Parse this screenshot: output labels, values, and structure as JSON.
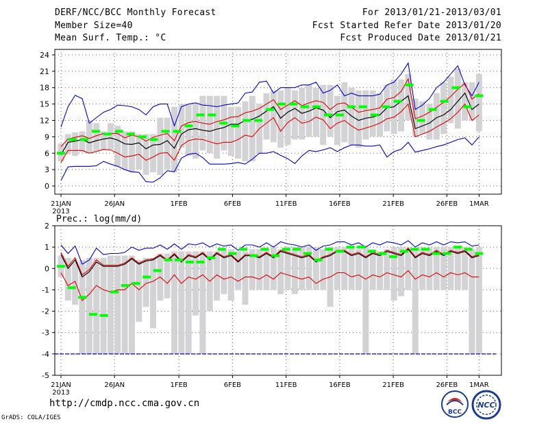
{
  "header": {
    "title": "DERF/NCC/BCC Monthly Forecast",
    "member_size": "Member Size=40",
    "variable": "Mean Surf. Temp.: °C",
    "period": "For 2013/01/21-2013/03/01",
    "refer_date": "Fcst Started Refer Date 2013/01/20",
    "produced_date": "Fcst Produced Date 2013/01/21"
  },
  "footer": {
    "url": "http://cmdp.ncc.cma.gov.cn",
    "grads": "GrADS: COLA/IGES",
    "logo1_text": "BCC",
    "logo2_text": "NCC"
  },
  "colors": {
    "box": "#d3d3d6",
    "member": "#00ff00",
    "mean": "#000000",
    "inner": "#dd0000",
    "outer": "#0000cc",
    "grid": "#555555"
  },
  "chart_data": [
    {
      "type": "box-line",
      "title": "Mean Surf. Temp.: °C",
      "xlabel": "",
      "ylabel": "",
      "x_tick_labels": [
        "21JAN",
        "26JAN",
        "1FEB",
        "6FEB",
        "11FEB",
        "16FEB",
        "21FEB",
        "26FEB",
        "1MAR"
      ],
      "x_tick_days": [
        0,
        5,
        11,
        16,
        21,
        26,
        31,
        36,
        39
      ],
      "x_sublabel": "2013",
      "ylim": [
        -1.5,
        25
      ],
      "yticks": [
        0,
        3,
        6,
        9,
        12,
        15,
        18,
        21,
        24
      ],
      "grid": true,
      "series": [
        {
          "name": "box_low",
          "values": [
            4.5,
            5.8,
            5.5,
            6.2,
            6.0,
            6.3,
            6.5,
            6.7,
            3.5,
            3.0,
            2.5,
            3.0,
            2.0,
            2.5,
            2.0,
            3.0,
            2.5,
            7.0,
            5.5,
            5.0,
            6.5,
            6.0,
            5.0,
            6.5,
            5.5,
            5.0,
            4.5,
            4.5,
            6.0,
            8.5,
            8.0,
            7.0,
            7.5,
            8.5,
            8.5,
            9.0,
            9.0,
            7.5,
            9.0,
            7.5,
            8.0,
            7.5,
            7.0,
            8.5,
            9.0,
            9.0,
            10.0,
            9.5,
            10.0,
            12.0,
            9.0,
            9.5,
            8.5,
            8.5,
            9.5,
            11.5,
            10.5,
            12.0,
            12.0,
            10.0
          ]
        },
        {
          "name": "box_high",
          "values": [
            7.8,
            9.5,
            9.8,
            10.0,
            12.0,
            11.5,
            10.0,
            11.5,
            11.0,
            10.0,
            10.0,
            9.5,
            9.5,
            9.5,
            12.5,
            12.5,
            14.5,
            15.0,
            15.0,
            15.0,
            16.5,
            16.5,
            16.5,
            16.5,
            14.5,
            14.5,
            15.5,
            16.5,
            15.0,
            17.0,
            17.5,
            17.5,
            18.0,
            17.5,
            18.0,
            18.5,
            18.0,
            18.5,
            18.5,
            16.5,
            19.0,
            18.0,
            17.5,
            17.5,
            17.5,
            17.0,
            18.5,
            19.5,
            19.5,
            20.5,
            16.0,
            15.5,
            15.0,
            17.0,
            19.0,
            20.0,
            21.5,
            19.0,
            19.0,
            20.5
          ]
        },
        {
          "name": "member",
          "values": [
            6.0,
            8.5,
            8.5,
            10.0,
            9.5,
            10.0,
            9.5,
            9.0,
            8.5,
            10.0,
            10.0,
            11.0,
            13.0,
            13.0,
            11.5,
            11.0,
            12.0,
            12.0,
            14.0,
            15.0,
            15.0,
            14.5,
            14.5,
            13.0,
            13.0,
            14.5,
            14.5,
            13.0,
            14.5,
            15.5,
            18.5,
            12.0,
            14.0,
            15.5,
            18.0,
            14.5,
            16.5
          ]
        },
        {
          "name": "mean",
          "values": [
            5.7,
            8.0,
            8.2,
            8.5,
            7.9,
            8.3,
            8.6,
            8.8,
            8.4,
            7.7,
            7.6,
            7.9,
            6.8,
            7.5,
            7.6,
            8.3,
            6.9,
            9.5,
            10.3,
            10.5,
            10.2,
            10.0,
            10.4,
            10.7,
            11.3,
            11.3,
            12.0,
            12.2,
            12.8,
            13.7,
            14.5,
            12.4,
            13.5,
            14.2,
            13.3,
            13.7,
            14.3,
            13.9,
            12.5,
            13.6,
            13.9,
            12.8,
            12.0,
            12.4,
            12.6,
            13.0,
            14.3,
            14.5,
            15.5,
            16.5,
            10.5,
            11.0,
            11.5,
            12.5,
            13.0,
            14.0,
            15.5,
            17.0,
            14.0,
            15.0
          ]
        },
        {
          "name": "inner_high",
          "values": [
            7.2,
            8.6,
            8.9,
            9.2,
            8.7,
            9.2,
            9.6,
            9.6,
            9.6,
            8.8,
            9.3,
            9.0,
            8.2,
            8.9,
            9.3,
            9.6,
            8.3,
            11.0,
            11.6,
            11.8,
            11.5,
            11.3,
            11.8,
            12.1,
            12.6,
            12.7,
            13.4,
            13.7,
            14.2,
            15.0,
            15.8,
            14.0,
            14.8,
            15.6,
            14.7,
            15.2,
            15.6,
            15.3,
            14.0,
            15.0,
            15.2,
            14.4,
            13.5,
            13.8,
            14.0,
            14.3,
            15.9,
            16.2,
            17.3,
            19.6,
            12.3,
            12.8,
            13.5,
            14.4,
            15.3,
            16.4,
            17.7,
            18.8,
            15.9,
            16.9
          ]
        },
        {
          "name": "inner_low",
          "values": [
            4.3,
            6.5,
            6.5,
            6.5,
            6.0,
            6.3,
            6.7,
            6.6,
            6.0,
            5.3,
            5.5,
            5.8,
            4.7,
            5.3,
            6.0,
            6.1,
            4.7,
            7.4,
            8.3,
            8.6,
            8.5,
            8.1,
            7.7,
            8.0,
            8.0,
            8.5,
            9.3,
            9.0,
            10.5,
            11.5,
            12.5,
            10.0,
            11.6,
            12.5,
            11.5,
            11.8,
            12.6,
            12.1,
            10.5,
            11.5,
            12.0,
            11.0,
            10.2,
            10.6,
            11.0,
            11.5,
            12.3,
            12.6,
            13.6,
            15.0,
            9.0,
            9.5,
            10.0,
            10.8,
            11.5,
            12.3,
            13.5,
            15.0,
            12.0,
            13.0
          ]
        },
        {
          "name": "outer_high",
          "values": [
            10.8,
            14.5,
            16.6,
            16.0,
            11.5,
            12.5,
            13.5,
            14.0,
            14.8,
            14.7,
            14.5,
            14.0,
            13.0,
            14.5,
            15.0,
            15.0,
            11.0,
            14.5,
            15.0,
            15.2,
            14.8,
            14.7,
            14.5,
            14.8,
            15.0,
            15.2,
            17.0,
            17.2,
            19.0,
            19.2,
            17.0,
            18.0,
            18.0,
            18.0,
            18.5,
            18.5,
            19.0,
            17.0,
            17.5,
            18.5,
            16.5,
            17.0,
            16.5,
            16.5,
            16.5,
            16.8,
            18.5,
            19.0,
            20.5,
            22.5,
            14.0,
            14.8,
            16.0,
            18.0,
            19.0,
            20.5,
            22.0,
            18.5,
            16.5,
            19.0
          ]
        },
        {
          "name": "outer_low",
          "values": [
            1.0,
            3.5,
            3.6,
            3.6,
            3.6,
            3.7,
            4.5,
            4.0,
            3.6,
            3.0,
            2.6,
            2.5,
            0.8,
            0.7,
            1.5,
            2.8,
            2.6,
            5.1,
            5.8,
            6.0,
            5.2,
            4.0,
            4.0,
            4.0,
            4.1,
            4.3,
            4.0,
            4.9,
            6.0,
            6.0,
            6.3,
            5.6,
            5.0,
            4.1,
            5.5,
            6.5,
            6.3,
            6.6,
            7.0,
            6.3,
            7.0,
            7.5,
            7.5,
            7.3,
            7.3,
            7.5,
            5.3,
            6.3,
            6.7,
            8.0,
            6.2,
            6.5,
            6.8,
            7.2,
            7.5,
            8.0,
            8.5,
            8.8,
            7.5,
            9.0
          ]
        }
      ]
    },
    {
      "type": "box-line",
      "title": "Prec.: log(mm/d)",
      "xlabel": "",
      "ylabel": "",
      "x_tick_labels": [
        "21JAN",
        "26JAN",
        "1FEB",
        "6FEB",
        "11FEB",
        "16FEB",
        "21FEB",
        "26FEB",
        "1MAR"
      ],
      "x_tick_days": [
        0,
        5,
        11,
        16,
        21,
        26,
        31,
        36,
        39
      ],
      "x_sublabel": "2013",
      "ylim": [
        -5,
        2
      ],
      "yticks": [
        -5,
        -4,
        -3,
        -2,
        -1,
        0,
        1,
        2
      ],
      "reference_line": -4,
      "grid": true,
      "series": [
        {
          "name": "box_low",
          "values": [
            -0.4,
            -1.5,
            -1.7,
            -4.0,
            -4.0,
            -4.0,
            -4.0,
            -4.0,
            -4.0,
            -4.0,
            -4.0,
            -2.5,
            -1.8,
            -2.8,
            -1.5,
            -1.4,
            -4.0,
            -4.0,
            -4.0,
            -2.2,
            -4.0,
            -2.0,
            -1.5,
            -1.2,
            -1.5,
            -1.0,
            -1.7,
            -1.0,
            -1.0,
            -1.0,
            -1.0,
            -1.2,
            -1.0,
            -1.2,
            -1.0,
            -1.0,
            -1.0,
            -1.0,
            -1.8,
            -1.0,
            -1.0,
            -1.0,
            -1.0,
            -4.0,
            -1.0,
            -1.0,
            -1.0,
            -1.5,
            -1.3,
            -1.0,
            -4.0,
            -1.0,
            -1.0,
            -1.0,
            -1.0,
            -1.0,
            -1.0,
            -1.0,
            -4.0,
            -4.0
          ]
        },
        {
          "name": "box_high",
          "values": [
            0.6,
            0.5,
            0.3,
            0.4,
            0.5,
            0.5,
            0.5,
            0.6,
            0.6,
            0.6,
            0.6,
            0.4,
            0.5,
            0.5,
            0.7,
            0.7,
            0.8,
            0.8,
            0.8,
            0.8,
            0.8,
            0.8,
            0.8,
            0.9,
            0.9,
            0.8,
            0.8,
            0.9,
            0.9,
            0.9,
            1.0,
            0.9,
            1.0,
            1.0,
            1.0,
            1.0,
            1.0,
            0.9,
            1.0,
            1.0,
            1.0,
            1.0,
            0.9,
            1.0,
            0.9,
            0.8,
            0.9,
            1.0,
            1.0,
            1.0,
            0.9,
            1.0,
            1.0,
            1.0,
            1.0,
            1.0,
            1.0,
            1.0,
            0.9,
            1.0
          ]
        },
        {
          "name": "member",
          "values": [
            0.1,
            -0.9,
            -1.35,
            -2.15,
            -2.2,
            -1.1,
            -0.8,
            -0.7,
            -0.4,
            -0.1,
            0.4,
            0.4,
            0.3,
            0.3,
            0.5,
            0.9,
            0.7,
            0.9,
            0.6,
            0.9,
            0.6,
            0.9,
            0.9,
            0.7,
            0.4,
            0.9,
            0.8,
            1.0,
            1.0,
            0.8,
            0.7,
            0.55,
            0.8,
            0.9,
            0.9,
            0.7,
            0.7,
            1.0,
            0.9,
            0.7
          ]
        },
        {
          "name": "mean",
          "values": [
            0.65,
            0.0,
            0.4,
            -0.4,
            -0.15,
            0.3,
            0.1,
            0.1,
            0.1,
            0.2,
            0.45,
            0.2,
            0.35,
            0.4,
            0.6,
            0.35,
            0.65,
            0.3,
            0.6,
            0.5,
            0.7,
            0.4,
            0.7,
            0.5,
            0.6,
            0.3,
            0.6,
            0.6,
            0.5,
            0.7,
            0.5,
            0.8,
            0.7,
            0.6,
            0.5,
            0.6,
            0.3,
            0.5,
            0.6,
            0.8,
            0.8,
            0.6,
            0.7,
            0.5,
            0.7,
            0.6,
            0.8,
            0.7,
            0.6,
            0.9,
            0.5,
            0.7,
            0.6,
            0.8,
            0.6,
            0.8,
            0.7,
            0.8,
            0.5,
            0.6
          ]
        },
        {
          "name": "inner_high",
          "values": [
            0.75,
            0.1,
            0.5,
            -0.3,
            -0.05,
            0.4,
            0.15,
            0.15,
            0.15,
            0.25,
            0.5,
            0.25,
            0.4,
            0.45,
            0.65,
            0.4,
            0.7,
            0.35,
            0.65,
            0.55,
            0.75,
            0.45,
            0.75,
            0.55,
            0.65,
            0.35,
            0.65,
            0.65,
            0.55,
            0.75,
            0.55,
            0.85,
            0.75,
            0.65,
            0.55,
            0.65,
            0.35,
            0.55,
            0.65,
            0.85,
            0.85,
            0.65,
            0.75,
            0.55,
            0.75,
            0.65,
            0.85,
            0.75,
            0.65,
            0.95,
            0.55,
            0.75,
            0.65,
            0.85,
            0.65,
            0.85,
            0.75,
            0.85,
            0.55,
            0.65
          ]
        },
        {
          "name": "inner_low",
          "values": [
            -0.2,
            -0.8,
            -0.6,
            -1.5,
            -1.2,
            -0.8,
            -1.0,
            -1.1,
            -1.0,
            -1.0,
            -0.7,
            -1.0,
            -0.7,
            -0.6,
            -0.4,
            -0.7,
            -0.3,
            -0.7,
            -0.4,
            -0.5,
            -0.3,
            -0.6,
            -0.3,
            -0.5,
            -0.4,
            -0.6,
            -0.4,
            -0.4,
            -0.5,
            -0.3,
            -0.5,
            -0.2,
            -0.3,
            -0.4,
            -0.5,
            -0.4,
            -0.7,
            -0.5,
            -0.4,
            -0.2,
            -0.2,
            -0.4,
            -0.3,
            -0.5,
            -0.3,
            -0.4,
            -0.2,
            -0.3,
            -0.4,
            -0.1,
            -0.5,
            -0.3,
            -0.4,
            -0.2,
            -0.4,
            -0.2,
            -0.3,
            -0.2,
            -0.4,
            -0.4
          ]
        },
        {
          "name": "outer_high",
          "values": [
            1.1,
            0.7,
            1.05,
            0.2,
            0.4,
            0.95,
            0.65,
            0.7,
            0.7,
            0.75,
            1.0,
            0.85,
            0.95,
            0.95,
            1.1,
            0.9,
            1.15,
            0.9,
            1.15,
            1.1,
            1.2,
            1.0,
            1.15,
            1.05,
            1.1,
            0.85,
            1.1,
            1.1,
            1.0,
            1.2,
            1.0,
            1.25,
            1.15,
            1.1,
            1.0,
            1.1,
            0.85,
            1.05,
            1.1,
            1.25,
            1.25,
            1.1,
            1.2,
            1.0,
            1.2,
            1.1,
            1.25,
            1.2,
            1.1,
            1.3,
            1.0,
            1.2,
            1.1,
            1.25,
            1.1,
            1.25,
            1.2,
            1.25,
            1.05,
            1.1
          ]
        },
        {
          "name": "outer_low",
          "values": [
            -4.0,
            -4.0,
            -4.0,
            -4.0,
            -4.0,
            -4.0,
            -4.0,
            -4.0,
            -4.0,
            -4.0,
            -4.0,
            -4.0,
            -4.0,
            -4.0,
            -4.0,
            -4.0,
            -4.0,
            -4.0,
            -4.0,
            -4.0,
            -4.0,
            -4.0,
            -4.0,
            -4.0,
            -4.0,
            -4.0,
            -4.0,
            -4.0,
            -4.0,
            -4.0,
            -4.0,
            -4.0,
            -4.0,
            -4.0,
            -4.0,
            -4.0,
            -4.0,
            -4.0,
            -4.0,
            -4.0,
            -4.0,
            -4.0,
            -4.0,
            -4.0,
            -4.0,
            -4.0,
            -4.0,
            -4.0,
            -4.0,
            -4.0,
            -4.0,
            -4.0,
            -4.0,
            -4.0,
            -4.0,
            -4.0,
            -4.0,
            -4.0,
            -4.0,
            -4.0
          ]
        }
      ]
    }
  ]
}
